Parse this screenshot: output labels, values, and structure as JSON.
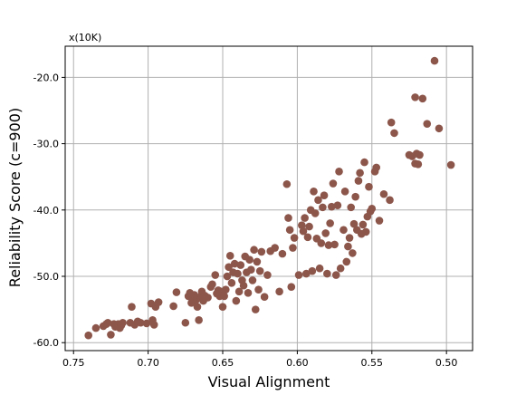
{
  "chart_data": {
    "type": "scatter",
    "xlabel": "Visual Alignment",
    "ylabel": "Reliability Score (c=900)",
    "y_offset_label": "x(10K)",
    "x_inverted": true,
    "xlim": [
      0.7556,
      0.4825
    ],
    "ylim": [
      -61.2,
      -15.3
    ],
    "x_ticks": [
      0.75,
      0.7,
      0.65,
      0.6,
      0.55,
      0.5
    ],
    "x_tick_labels": [
      "0.75",
      "0.70",
      "0.65",
      "0.60",
      "0.55",
      "0.50"
    ],
    "y_ticks": [
      -60,
      -50,
      -40,
      -30,
      -20
    ],
    "y_tick_labels": [
      "-60.0",
      "-50.0",
      "-40.0",
      "-30.0",
      "-20.0"
    ],
    "grid": true,
    "marker_color": "#8c564b",
    "points": [
      {
        "x": 0.74,
        "y": -58.9
      },
      {
        "x": 0.735,
        "y": -57.8
      },
      {
        "x": 0.73,
        "y": -57.5
      },
      {
        "x": 0.728,
        "y": -57.2
      },
      {
        "x": 0.727,
        "y": -57.0
      },
      {
        "x": 0.725,
        "y": -58.8
      },
      {
        "x": 0.723,
        "y": -57.2
      },
      {
        "x": 0.722,
        "y": -57.6
      },
      {
        "x": 0.72,
        "y": -57.2
      },
      {
        "x": 0.719,
        "y": -57.8
      },
      {
        "x": 0.718,
        "y": -57.4
      },
      {
        "x": 0.717,
        "y": -57.0
      },
      {
        "x": 0.712,
        "y": -57.0
      },
      {
        "x": 0.711,
        "y": -54.6
      },
      {
        "x": 0.709,
        "y": -57.3
      },
      {
        "x": 0.707,
        "y": -56.8
      },
      {
        "x": 0.705,
        "y": -57.0
      },
      {
        "x": 0.701,
        "y": -57.1
      },
      {
        "x": 0.698,
        "y": -54.1
      },
      {
        "x": 0.697,
        "y": -56.6
      },
      {
        "x": 0.696,
        "y": -57.3
      },
      {
        "x": 0.695,
        "y": -54.6
      },
      {
        "x": 0.693,
        "y": -53.9
      },
      {
        "x": 0.683,
        "y": -54.5
      },
      {
        "x": 0.681,
        "y": -52.4
      },
      {
        "x": 0.675,
        "y": -57.0
      },
      {
        "x": 0.673,
        "y": -53.0
      },
      {
        "x": 0.672,
        "y": -52.5
      },
      {
        "x": 0.671,
        "y": -54.0
      },
      {
        "x": 0.67,
        "y": -53.4
      },
      {
        "x": 0.669,
        "y": -52.8
      },
      {
        "x": 0.668,
        "y": -53.6
      },
      {
        "x": 0.667,
        "y": -54.6
      },
      {
        "x": 0.666,
        "y": -56.6
      },
      {
        "x": 0.665,
        "y": -53.1
      },
      {
        "x": 0.664,
        "y": -52.3
      },
      {
        "x": 0.663,
        "y": -53.7
      },
      {
        "x": 0.662,
        "y": -52.9
      },
      {
        "x": 0.66,
        "y": -53.2
      },
      {
        "x": 0.658,
        "y": -51.6
      },
      {
        "x": 0.657,
        "y": -51.2
      },
      {
        "x": 0.655,
        "y": -49.8
      },
      {
        "x": 0.654,
        "y": -52.6
      },
      {
        "x": 0.653,
        "y": -52.1
      },
      {
        "x": 0.652,
        "y": -53.0
      },
      {
        "x": 0.651,
        "y": -52.3
      },
      {
        "x": 0.65,
        "y": -54.6
      },
      {
        "x": 0.649,
        "y": -53.0
      },
      {
        "x": 0.648,
        "y": -52.0
      },
      {
        "x": 0.647,
        "y": -50.0
      },
      {
        "x": 0.646,
        "y": -48.6
      },
      {
        "x": 0.645,
        "y": -46.9
      },
      {
        "x": 0.644,
        "y": -51.0
      },
      {
        "x": 0.643,
        "y": -49.4
      },
      {
        "x": 0.642,
        "y": -48.1
      },
      {
        "x": 0.641,
        "y": -53.7
      },
      {
        "x": 0.64,
        "y": -49.6
      },
      {
        "x": 0.639,
        "y": -52.3
      },
      {
        "x": 0.638,
        "y": -48.3
      },
      {
        "x": 0.637,
        "y": -50.6
      },
      {
        "x": 0.636,
        "y": -51.4
      },
      {
        "x": 0.635,
        "y": -47.0
      },
      {
        "x": 0.634,
        "y": -49.4
      },
      {
        "x": 0.633,
        "y": -52.5
      },
      {
        "x": 0.632,
        "y": -47.5
      },
      {
        "x": 0.631,
        "y": -49.0
      },
      {
        "x": 0.63,
        "y": -50.6
      },
      {
        "x": 0.629,
        "y": -46.0
      },
      {
        "x": 0.628,
        "y": -55.0
      },
      {
        "x": 0.627,
        "y": -47.8
      },
      {
        "x": 0.626,
        "y": -52.0
      },
      {
        "x": 0.625,
        "y": -49.2
      },
      {
        "x": 0.624,
        "y": -46.3
      },
      {
        "x": 0.622,
        "y": -53.1
      },
      {
        "x": 0.62,
        "y": -49.8
      },
      {
        "x": 0.618,
        "y": -46.2
      },
      {
        "x": 0.615,
        "y": -45.7
      },
      {
        "x": 0.612,
        "y": -52.3
      },
      {
        "x": 0.61,
        "y": -46.6
      },
      {
        "x": 0.607,
        "y": -36.1
      },
      {
        "x": 0.606,
        "y": -41.2
      },
      {
        "x": 0.605,
        "y": -43.0
      },
      {
        "x": 0.604,
        "y": -51.6
      },
      {
        "x": 0.603,
        "y": -45.7
      },
      {
        "x": 0.602,
        "y": -44.2
      },
      {
        "x": 0.599,
        "y": -49.8
      },
      {
        "x": 0.597,
        "y": -42.3
      },
      {
        "x": 0.596,
        "y": -43.2
      },
      {
        "x": 0.595,
        "y": -41.2
      },
      {
        "x": 0.594,
        "y": -49.6
      },
      {
        "x": 0.593,
        "y": -44.1
      },
      {
        "x": 0.592,
        "y": -42.5
      },
      {
        "x": 0.591,
        "y": -40.0
      },
      {
        "x": 0.59,
        "y": -49.2
      },
      {
        "x": 0.589,
        "y": -37.2
      },
      {
        "x": 0.588,
        "y": -40.5
      },
      {
        "x": 0.587,
        "y": -44.3
      },
      {
        "x": 0.586,
        "y": -38.5
      },
      {
        "x": 0.585,
        "y": -48.8
      },
      {
        "x": 0.584,
        "y": -45.0
      },
      {
        "x": 0.583,
        "y": -39.6
      },
      {
        "x": 0.582,
        "y": -37.8
      },
      {
        "x": 0.581,
        "y": -43.5
      },
      {
        "x": 0.58,
        "y": -49.6
      },
      {
        "x": 0.579,
        "y": -45.3
      },
      {
        "x": 0.578,
        "y": -42.0
      },
      {
        "x": 0.577,
        "y": -39.5
      },
      {
        "x": 0.576,
        "y": -36.0
      },
      {
        "x": 0.575,
        "y": -45.2
      },
      {
        "x": 0.574,
        "y": -49.8
      },
      {
        "x": 0.573,
        "y": -39.3
      },
      {
        "x": 0.572,
        "y": -34.2
      },
      {
        "x": 0.571,
        "y": -48.8
      },
      {
        "x": 0.569,
        "y": -43.0
      },
      {
        "x": 0.568,
        "y": -37.2
      },
      {
        "x": 0.567,
        "y": -47.8
      },
      {
        "x": 0.566,
        "y": -45.5
      },
      {
        "x": 0.565,
        "y": -44.2
      },
      {
        "x": 0.564,
        "y": -39.6
      },
      {
        "x": 0.563,
        "y": -46.5
      },
      {
        "x": 0.562,
        "y": -42.1
      },
      {
        "x": 0.561,
        "y": -38.0
      },
      {
        "x": 0.56,
        "y": -43.0
      },
      {
        "x": 0.559,
        "y": -35.6
      },
      {
        "x": 0.558,
        "y": -34.4
      },
      {
        "x": 0.557,
        "y": -43.6
      },
      {
        "x": 0.556,
        "y": -42.2
      },
      {
        "x": 0.555,
        "y": -32.8
      },
      {
        "x": 0.554,
        "y": -43.3
      },
      {
        "x": 0.553,
        "y": -41.0
      },
      {
        "x": 0.552,
        "y": -36.5
      },
      {
        "x": 0.551,
        "y": -40.2
      },
      {
        "x": 0.55,
        "y": -39.8
      },
      {
        "x": 0.548,
        "y": -34.2
      },
      {
        "x": 0.547,
        "y": -33.6
      },
      {
        "x": 0.545,
        "y": -41.6
      },
      {
        "x": 0.542,
        "y": -37.6
      },
      {
        "x": 0.538,
        "y": -38.5
      },
      {
        "x": 0.537,
        "y": -26.8
      },
      {
        "x": 0.535,
        "y": -28.4
      },
      {
        "x": 0.525,
        "y": -31.7
      },
      {
        "x": 0.523,
        "y": -31.9
      },
      {
        "x": 0.521,
        "y": -33.0
      },
      {
        "x": 0.52,
        "y": -31.5
      },
      {
        "x": 0.519,
        "y": -33.1
      },
      {
        "x": 0.518,
        "y": -31.7
      },
      {
        "x": 0.521,
        "y": -23.0
      },
      {
        "x": 0.516,
        "y": -23.2
      },
      {
        "x": 0.513,
        "y": -27.0
      },
      {
        "x": 0.508,
        "y": -17.5
      },
      {
        "x": 0.505,
        "y": -27.7
      },
      {
        "x": 0.497,
        "y": -33.2
      }
    ]
  }
}
